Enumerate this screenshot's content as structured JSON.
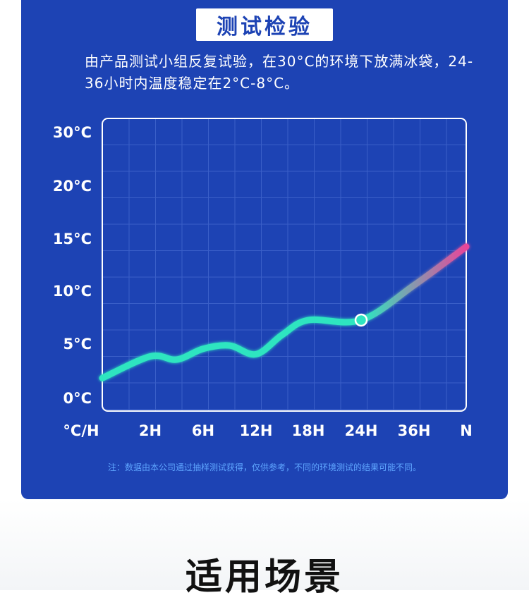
{
  "header": {
    "title": "测试检验"
  },
  "description": "由产品测试小组反复试验，在30°C的环境下放满冰袋，24-36小时内温度稳定在2°C-8°C。",
  "chart_data": {
    "type": "line",
    "y_tick_labels": [
      "0°C",
      "5°C",
      "10°C",
      "15°C",
      "20°C",
      "30°C"
    ],
    "x_tick_labels": [
      "°C/H",
      "2H",
      "6H",
      "12H",
      "18H",
      "24H",
      "36H",
      "N"
    ],
    "series": [
      {
        "points": [
          {
            "x": "°C/H",
            "y": 1.8
          },
          {
            "x": "2H",
            "y": 3.8
          },
          {
            "x": "4H",
            "y": 3.5
          },
          {
            "x": "6H",
            "y": 4.5
          },
          {
            "x": "9H",
            "y": 4.8
          },
          {
            "x": "12H",
            "y": 4.0
          },
          {
            "x": "15H",
            "y": 5.8
          },
          {
            "x": "18H",
            "y": 7.2
          },
          {
            "x": "24H",
            "y": 7.2
          },
          {
            "x": "36H",
            "y": 10.5
          },
          {
            "x": "N",
            "y": 14.2
          }
        ]
      }
    ],
    "highlight_point": {
      "x": "24H",
      "y": 7.2
    },
    "grid": true,
    "colors": {
      "line_start": "#2ee5c0",
      "line_end": "#e8459a",
      "grid": "#3a5fc8",
      "frame": "#ffffff"
    }
  },
  "note": "注：数据由本公司通过抽样测试获得，仅供参考，不同的环境测试的结果可能不同。",
  "footer": {
    "title": "适用场景"
  }
}
